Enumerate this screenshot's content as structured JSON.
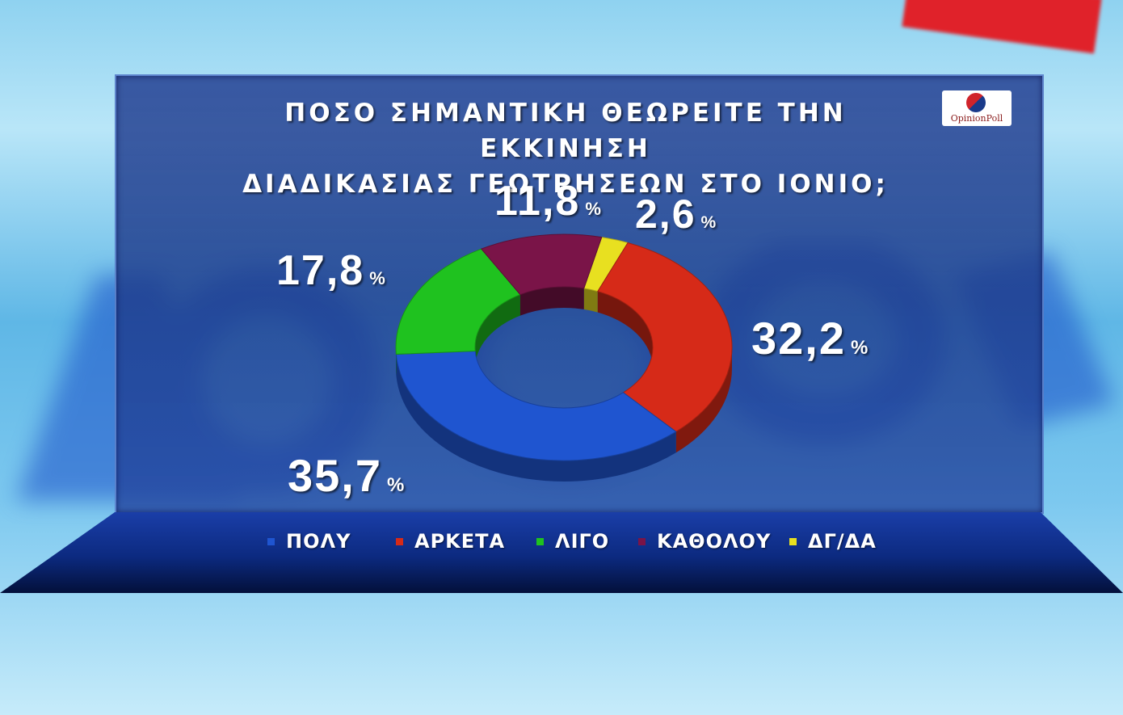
{
  "title_line1": "ΠΟΣΟ ΣΗΜΑΝΤΙΚΗ ΘΕΩΡΕΙΤΕ ΤΗΝ ΕΚΚΙΝΗΣΗ",
  "title_line2": "ΔΙΑΔΙΚΑΣΙΑΣ ΓΕΩΤΡΗΣΕΩΝ ΣΤΟ ΙΟΝΙΟ;",
  "logo_text": "OpinionPoll",
  "percent_sign": "%",
  "chart_data": {
    "type": "pie",
    "style": "donut",
    "title": "ΠΟΣΟ ΣΗΜΑΝΤΙΚΗ ΘΕΩΡΕΙΤΕ ΤΗΝ ΕΚΚΙΝΗΣΗ ΔΙΑΔΙΚΑΣΙΑΣ ΓΕΩΤΡΗΣΕΩΝ ΣΤΟ ΙΟΝΙΟ;",
    "legend_position": "bottom",
    "slices": [
      {
        "label": "ΠΟΛΥ",
        "value": 35.7,
        "display": "35,7",
        "color": "#1f55d0"
      },
      {
        "label": "ΑΡΚΕΤΑ",
        "value": 32.2,
        "display": "32,2",
        "color": "#d62a18"
      },
      {
        "label": "ΛΙΓΟ",
        "value": 17.8,
        "display": "17,8",
        "color": "#1fc21f"
      },
      {
        "label": "ΚΑΘΟΛΟΥ",
        "value": 11.8,
        "display": "11,8",
        "color": "#7a1448"
      },
      {
        "label": "ΔΓ/ΔΑ",
        "value": 2.6,
        "display": "2,6",
        "color": "#e8e020"
      }
    ]
  }
}
